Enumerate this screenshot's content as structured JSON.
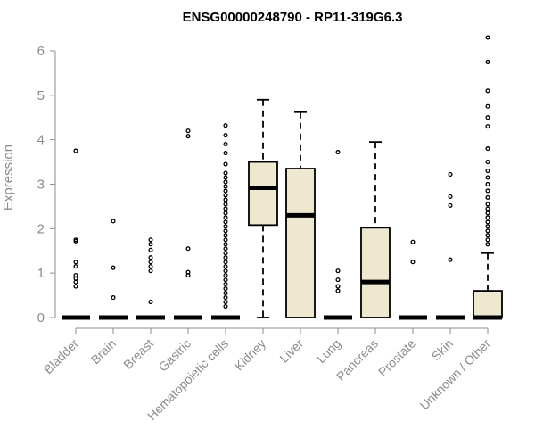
{
  "chart_data": {
    "type": "boxplot",
    "title": "ENSG00000248790 - RP11-319G6.3",
    "xlabel": "",
    "ylabel": "Expression",
    "ylim": [
      0,
      6.3
    ],
    "yticks": [
      0,
      1,
      2,
      3,
      4,
      5,
      6
    ],
    "box_fill": "#efe8d0",
    "box_stroke": "#000000",
    "categories": [
      "Bladder",
      "Brain",
      "Breast",
      "Gastric",
      "Hematopoietic cells",
      "Kidney",
      "Liver",
      "Lung",
      "Pancreas",
      "Prostate",
      "Skin",
      "Unknown / Other"
    ],
    "boxes": [
      {
        "category": "Bladder",
        "q1": 0,
        "median": 0,
        "q3": 0,
        "whisker_low": 0,
        "whisker_high": 0,
        "outliers": [
          0.7,
          0.8,
          0.88,
          0.95,
          1.15,
          1.25,
          1.72,
          1.75,
          3.75
        ]
      },
      {
        "category": "Brain",
        "q1": 0,
        "median": 0,
        "q3": 0,
        "whisker_low": 0,
        "whisker_high": 0,
        "outliers": [
          0.45,
          1.12,
          2.17
        ]
      },
      {
        "category": "Breast",
        "q1": 0,
        "median": 0,
        "q3": 0,
        "whisker_low": 0,
        "whisker_high": 0,
        "outliers": [
          0.35,
          1.05,
          1.15,
          1.25,
          1.35,
          1.52,
          1.65,
          1.75
        ]
      },
      {
        "category": "Gastric",
        "q1": 0,
        "median": 0,
        "q3": 0,
        "whisker_low": 0,
        "whisker_high": 0,
        "outliers": [
          0.95,
          1.02,
          1.55,
          4.08,
          4.2
        ]
      },
      {
        "category": "Hematopoietic cells",
        "q1": 0,
        "median": 0,
        "q3": 0,
        "whisker_low": 0,
        "whisker_high": 0,
        "outliers": [
          0.25,
          0.35,
          0.45,
          0.55,
          0.65,
          0.75,
          0.85,
          0.95,
          1.05,
          1.15,
          1.25,
          1.35,
          1.45,
          1.55,
          1.65,
          1.75,
          1.85,
          1.95,
          2.05,
          2.15,
          2.25,
          2.35,
          2.45,
          2.55,
          2.65,
          2.75,
          2.85,
          2.95,
          3.05,
          3.15,
          3.25,
          3.45,
          3.7,
          3.9,
          4.1,
          4.32
        ]
      },
      {
        "category": "Kidney",
        "q1": 2.08,
        "median": 2.92,
        "q3": 3.5,
        "whisker_low": 0,
        "whisker_high": 4.9,
        "outliers": []
      },
      {
        "category": "Liver",
        "q1": 0,
        "median": 2.3,
        "q3": 3.35,
        "whisker_low": 0,
        "whisker_high": 4.62,
        "outliers": []
      },
      {
        "category": "Lung",
        "q1": 0,
        "median": 0,
        "q3": 0,
        "whisker_low": 0,
        "whisker_high": 0,
        "outliers": [
          0.6,
          0.7,
          0.85,
          1.05,
          3.72
        ]
      },
      {
        "category": "Pancreas",
        "q1": 0,
        "median": 0.8,
        "q3": 2.02,
        "whisker_low": 0,
        "whisker_high": 3.95,
        "outliers": []
      },
      {
        "category": "Prostate",
        "q1": 0,
        "median": 0,
        "q3": 0,
        "whisker_low": 0,
        "whisker_high": 0,
        "outliers": [
          1.25,
          1.7
        ]
      },
      {
        "category": "Skin",
        "q1": 0,
        "median": 0,
        "q3": 0,
        "whisker_low": 0,
        "whisker_high": 0,
        "outliers": [
          1.3,
          2.52,
          2.72,
          3.22
        ]
      },
      {
        "category": "Unknown / Other",
        "q1": 0,
        "median": 0,
        "q3": 0.6,
        "whisker_low": 0,
        "whisker_high": 1.45,
        "outliers": [
          1.65,
          1.75,
          1.85,
          1.95,
          2.05,
          2.15,
          2.25,
          2.35,
          2.45,
          2.55,
          2.7,
          2.85,
          3.0,
          3.15,
          3.3,
          3.5,
          3.8,
          4.3,
          4.5,
          4.75,
          5.1,
          5.75,
          6.3
        ]
      }
    ]
  }
}
